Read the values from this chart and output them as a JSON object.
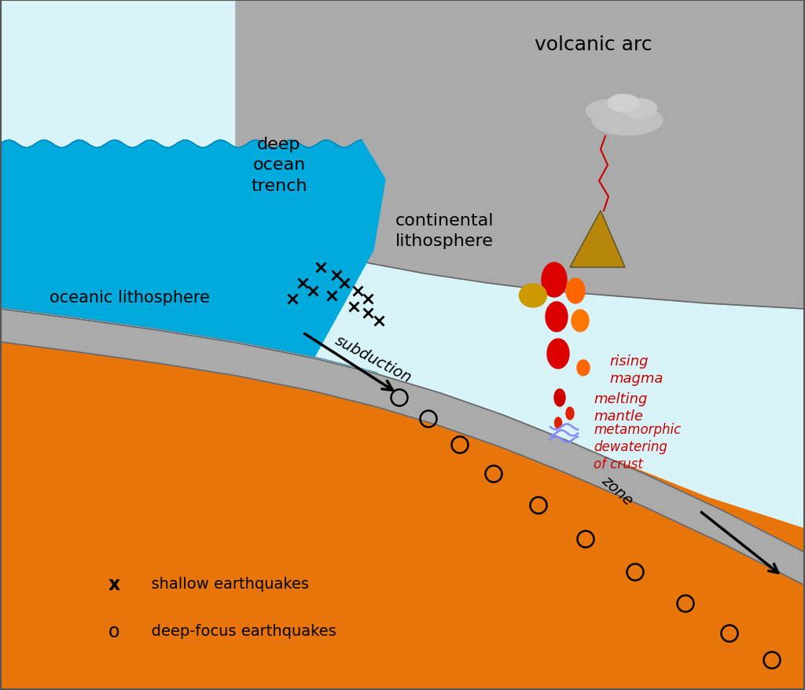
{
  "bg_color": "#d8f4f8",
  "ocean_color": "#00aadd",
  "mantle_color": "#e8750a",
  "litho_color": "#aaaaaa",
  "volcano_color": "#b8860b",
  "smoke_color": "#bbbbbb",
  "border_color": "#555555",
  "labels": {
    "volcanic_arc": "volcanic arc",
    "deep_ocean_trench": "deep\nocean\ntrench",
    "continental_lithosphere": "continental\nlithosphere",
    "oceanic_lithosphere": "oceanic lithosphere",
    "subduction": "subduction",
    "zone": "zone",
    "rising_magma": "rising\nmagma",
    "melting_mantle": "melting\nmantle",
    "metamorphic": "metamorphic\ndewatering\nof crust",
    "shallow_eq": "  shallow earthquakes",
    "deep_eq": "  deep-focus earthquakes"
  }
}
